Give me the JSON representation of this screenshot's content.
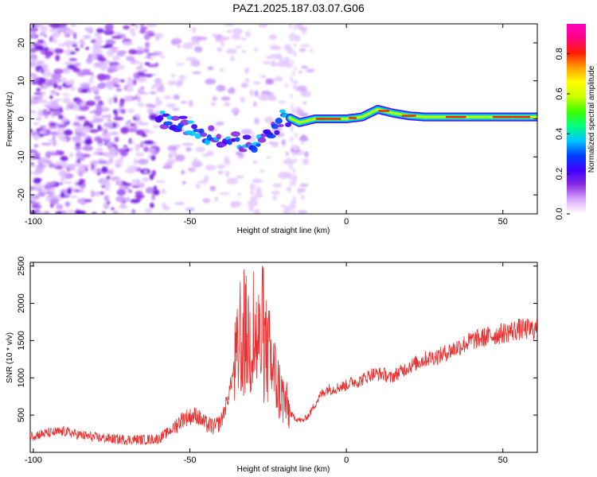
{
  "title": "PAZ1.2025.187.03.07.G06",
  "chart_data": [
    {
      "type": "heatmap",
      "xlabel": "Height of straight line (km)",
      "ylabel": "Frequency (Hz)",
      "xlim": [
        -101,
        61
      ],
      "ylim": [
        -25,
        25
      ],
      "xticks": [
        -100,
        -50,
        0,
        50
      ],
      "yticks": [
        -20,
        -10,
        0,
        10,
        20
      ],
      "colorbar": {
        "label": "Normalized spectral amplitude",
        "range": [
          0,
          0.95
        ],
        "ticks": [
          "0.0",
          "0.2",
          "0.4",
          "0.6",
          "0.8"
        ],
        "tick_values": [
          0.0,
          0.2,
          0.4,
          0.6,
          0.8
        ],
        "colors": [
          "#ffffff",
          "#d9a7ff",
          "#8a2be2",
          "#3c00ff",
          "#0040ff",
          "#00c8ff",
          "#00ff80",
          "#3cff00",
          "#c8ff00",
          "#ffff00",
          "#ffa000",
          "#ff2000",
          "#ff0080",
          "#ff00c0"
        ]
      },
      "ridge": {
        "x": [
          -60,
          -55,
          -50,
          -45,
          -40,
          -35,
          -30,
          -25,
          -20,
          -15,
          -10,
          -5,
          0,
          5,
          10,
          15,
          20,
          25,
          30,
          40,
          50,
          60
        ],
        "y": [
          0,
          -1,
          -2,
          -4,
          -5,
          -6,
          -7,
          -5,
          1,
          -1,
          0,
          0,
          0,
          0.5,
          2.5,
          1.5,
          0.8,
          0.5,
          0.5,
          0.5,
          0.5,
          0.5
        ]
      }
    },
    {
      "type": "line",
      "xlabel": "Height of straight line (km)",
      "ylabel": "SNR (10 * v/v)",
      "xlim": [
        -101,
        61
      ],
      "ylim": [
        0,
        2550
      ],
      "xticks": [
        -100,
        -50,
        0,
        50
      ],
      "yticks": [
        500,
        1000,
        1500,
        2000,
        2500
      ],
      "series": [
        {
          "color": "#e83030",
          "x": [
            -101,
            -95,
            -90,
            -85,
            -80,
            -75,
            -70,
            -65,
            -60,
            -56,
            -52,
            -48,
            -45,
            -42,
            -40,
            -38,
            -36,
            -34,
            -32,
            -30,
            -28,
            -26,
            -24,
            -22,
            -20,
            -18,
            -16,
            -14,
            -12,
            -10,
            -8,
            -6,
            -4,
            -2,
            0,
            2,
            4,
            6,
            8,
            10,
            12,
            14,
            16,
            18,
            20,
            25,
            30,
            35,
            40,
            45,
            50,
            55,
            60
          ],
          "y": [
            220,
            260,
            280,
            230,
            200,
            180,
            170,
            170,
            180,
            300,
            460,
            500,
            380,
            340,
            420,
            700,
            1100,
            1400,
            1550,
            1500,
            1480,
            1400,
            1200,
            900,
            700,
            520,
            450,
            420,
            500,
            650,
            780,
            850,
            850,
            880,
            900,
            950,
            950,
            1000,
            1050,
            1050,
            1050,
            1000,
            1050,
            1100,
            1150,
            1250,
            1300,
            1400,
            1500,
            1550,
            1600,
            1650,
            1650
          ]
        }
      ]
    }
  ]
}
